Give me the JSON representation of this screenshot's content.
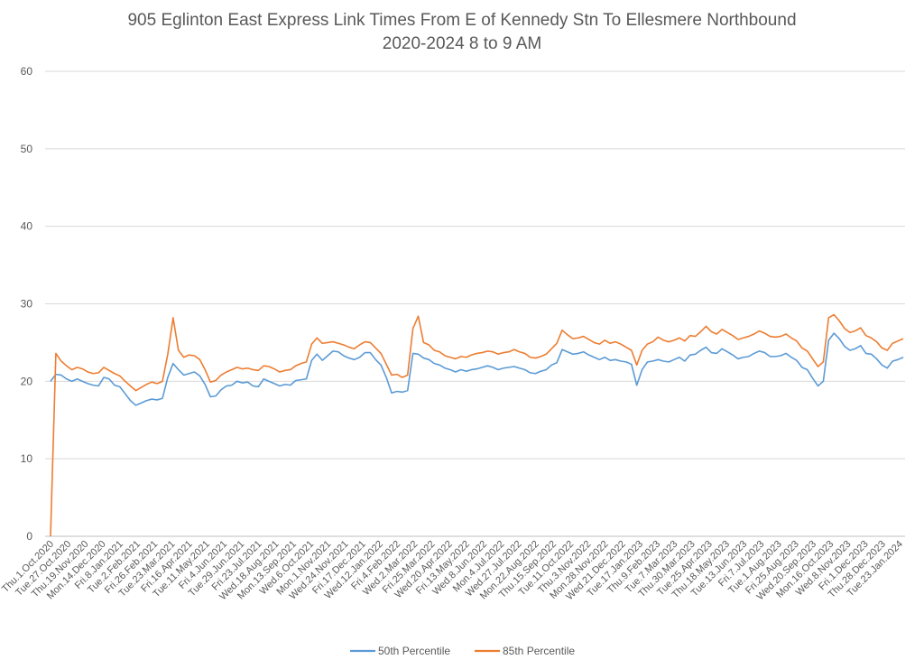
{
  "chart_data": {
    "type": "line",
    "title": "905 Eglinton East Express Link Times From E of Kennedy Stn To Ellesmere Northbound",
    "subtitle": "2020-2024 8 to 9 AM",
    "xlabel": "",
    "ylabel": "",
    "ylim": [
      0,
      60
    ],
    "yticks": [
      "0",
      "10",
      "20",
      "30",
      "40",
      "50",
      "60"
    ],
    "grid": true,
    "legend_position": "bottom",
    "x_tick_labels": [
      "Thu.1.Oct.2020",
      "Tue.27.Oct.2020",
      "Thu.19.Nov.2020",
      "Mon.14.Dec.2020",
      "Fri.8.Jan.2021",
      "Tue.2.Feb.2021",
      "Fri.26.Feb.2021",
      "Tue.23.Mar.2021",
      "Fri.16.Apr.2021",
      "Tue.11.May.2021",
      "Fri.4.Jun.2021",
      "Tue.29.Jun.2021",
      "Fri.23.Jul.2021",
      "Wed.18.Aug.2021",
      "Mon.13.Sep.2021",
      "Wed.6.Oct.2021",
      "Mon.1.Nov.2021",
      "Wed.24.Nov.2021",
      "Fri.17.Dec.2021",
      "Wed.12.Jan.2022",
      "Fri.4.Feb.2022",
      "Wed.2.Mar.2022",
      "Fri.25.Mar.2022",
      "Wed.20.Apr.2022",
      "Fri.13.May.2022",
      "Wed.8.Jun.2022",
      "Mon.4.Jul.2022",
      "Wed.27.Jul.2022",
      "Mon.22.Aug.2022",
      "Thu.15.Sep.2022",
      "Tue.11.Oct.2022",
      "Thu.3.Nov.2022",
      "Mon.28.Nov.2022",
      "Wed.21.Dec.2022",
      "Tue.17.Jan.2023",
      "Thu.9.Feb.2023",
      "Tue.7.Mar.2023",
      "Thu.30.Mar.2023",
      "Tue.25.Apr.2023",
      "Thu.18.May.2023",
      "Tue.13.Jun.2023",
      "Fri.7.Jul.2023",
      "Tue.1.Aug.2023",
      "Fri.25.Aug.2023",
      "Wed.20.Sep.2023",
      "Mon.16.Oct.2023",
      "Wed.8.Nov.2023",
      "Fri.1.Dec.2023",
      "Thu.28.Dec.2023",
      "Tue.23.Jan.2024"
    ],
    "series": [
      {
        "name": "50th Percentile",
        "color": "#5b9bd5",
        "values": [
          20.0,
          20.9,
          20.8,
          20.3,
          20.0,
          20.3,
          20.0,
          19.7,
          19.5,
          19.4,
          20.5,
          20.3,
          19.5,
          19.3,
          18.4,
          17.5,
          16.9,
          17.2,
          17.5,
          17.7,
          17.6,
          17.8,
          20.5,
          22.3,
          21.5,
          20.8,
          21.0,
          21.2,
          20.7,
          19.6,
          18.0,
          18.1,
          18.9,
          19.4,
          19.5,
          20.0,
          19.8,
          19.9,
          19.4,
          19.3,
          20.3,
          20.0,
          19.7,
          19.4,
          19.6,
          19.5,
          20.1,
          20.2,
          20.3,
          22.7,
          23.5,
          22.7,
          23.3,
          23.9,
          23.8,
          23.3,
          23.0,
          22.8,
          23.1,
          23.7,
          23.7,
          22.8,
          22.1,
          20.5,
          18.5,
          18.7,
          18.6,
          18.8,
          23.6,
          23.5,
          23.0,
          22.8,
          22.3,
          22.1,
          21.7,
          21.5,
          21.2,
          21.5,
          21.3,
          21.5,
          21.6,
          21.8,
          22.0,
          21.8,
          21.5,
          21.7,
          21.8,
          21.9,
          21.7,
          21.5,
          21.1,
          21.0,
          21.3,
          21.5,
          22.1,
          22.4,
          24.1,
          23.8,
          23.5,
          23.6,
          23.8,
          23.4,
          23.1,
          22.8,
          23.1,
          22.7,
          22.8,
          22.6,
          22.5,
          22.2,
          19.5,
          21.5,
          22.5,
          22.6,
          22.8,
          22.6,
          22.5,
          22.8,
          23.1,
          22.6,
          23.4,
          23.5,
          24.0,
          24.4,
          23.7,
          23.6,
          24.2,
          23.8,
          23.4,
          22.9,
          23.1,
          23.2,
          23.6,
          23.9,
          23.7,
          23.2,
          23.2,
          23.3,
          23.6,
          23.1,
          22.7,
          21.8,
          21.5,
          20.4,
          19.4,
          20.0,
          25.3,
          26.2,
          25.5,
          24.5,
          24.0,
          24.2,
          24.6,
          23.6,
          23.5,
          22.9,
          22.1,
          21.7,
          22.6,
          22.8,
          23.1
        ],
        "note": ""
      },
      {
        "name": "85th Percentile",
        "color": "#ed7d31",
        "values": [
          0,
          23.6,
          22.6,
          22.0,
          21.5,
          21.8,
          21.6,
          21.2,
          21.0,
          21.1,
          21.8,
          21.4,
          21.0,
          20.7,
          20.0,
          19.4,
          18.8,
          19.2,
          19.6,
          19.9,
          19.7,
          20.0,
          23.5,
          28.2,
          24.0,
          23.1,
          23.4,
          23.3,
          22.8,
          21.5,
          19.9,
          20.1,
          20.8,
          21.2,
          21.5,
          21.8,
          21.6,
          21.7,
          21.5,
          21.4,
          22.0,
          21.9,
          21.6,
          21.2,
          21.4,
          21.5,
          22.0,
          22.3,
          22.5,
          24.8,
          25.6,
          24.9,
          25.0,
          25.1,
          24.9,
          24.7,
          24.4,
          24.2,
          24.7,
          25.1,
          25.0,
          24.3,
          23.6,
          22.2,
          20.8,
          20.9,
          20.5,
          20.8,
          26.8,
          28.4,
          25.0,
          24.7,
          24.0,
          23.8,
          23.3,
          23.1,
          22.9,
          23.2,
          23.1,
          23.4,
          23.6,
          23.7,
          23.9,
          23.8,
          23.5,
          23.7,
          23.8,
          24.1,
          23.8,
          23.6,
          23.1,
          23.0,
          23.2,
          23.5,
          24.2,
          24.9,
          26.6,
          26.0,
          25.5,
          25.6,
          25.8,
          25.4,
          25.0,
          24.8,
          25.3,
          24.9,
          25.1,
          24.8,
          24.4,
          24.0,
          22.1,
          24.0,
          24.8,
          25.1,
          25.7,
          25.3,
          25.1,
          25.3,
          25.6,
          25.2,
          25.9,
          25.8,
          26.4,
          27.1,
          26.4,
          26.1,
          26.7,
          26.3,
          25.9,
          25.4,
          25.6,
          25.8,
          26.1,
          26.5,
          26.2,
          25.8,
          25.7,
          25.8,
          26.1,
          25.6,
          25.2,
          24.3,
          23.9,
          22.9,
          21.9,
          22.5,
          28.2,
          28.6,
          27.8,
          26.8,
          26.3,
          26.5,
          26.9,
          25.9,
          25.6,
          25.1,
          24.3,
          24.0,
          24.9,
          25.2,
          25.5
        ]
      }
    ],
    "annotations": [
      {
        "label": "",
        "note": ""
      }
    ]
  },
  "legend": {
    "items": [
      {
        "label": "50th Percentile",
        "color": "#5b9bd5"
      },
      {
        "label": "85th Percentile",
        "color": "#ed7d31"
      }
    ]
  }
}
